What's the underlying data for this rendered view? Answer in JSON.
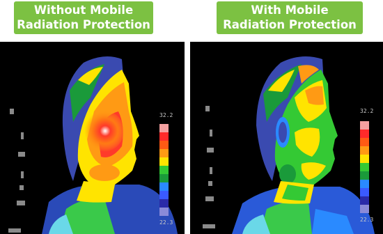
{
  "labels": {
    "left": {
      "line1": "Without Mobile",
      "line2": "Radiation Protection"
    },
    "right": {
      "line1": "With Mobile",
      "line2": "Radiation Protection"
    }
  },
  "scale": {
    "top_value": "32.2",
    "bottom_value": "22.3",
    "colors": [
      "#f4a0a0",
      "#ff2a2a",
      "#ff5a14",
      "#ff9a14",
      "#ffe400",
      "#34c934",
      "#1a9a3a",
      "#2a8aff",
      "#3a5aff",
      "#2a2aa8",
      "#8a8ad8"
    ]
  },
  "colors": {
    "label_bg": "#7cc142",
    "label_text": "#ffffff",
    "panel_bg": "#000000"
  }
}
